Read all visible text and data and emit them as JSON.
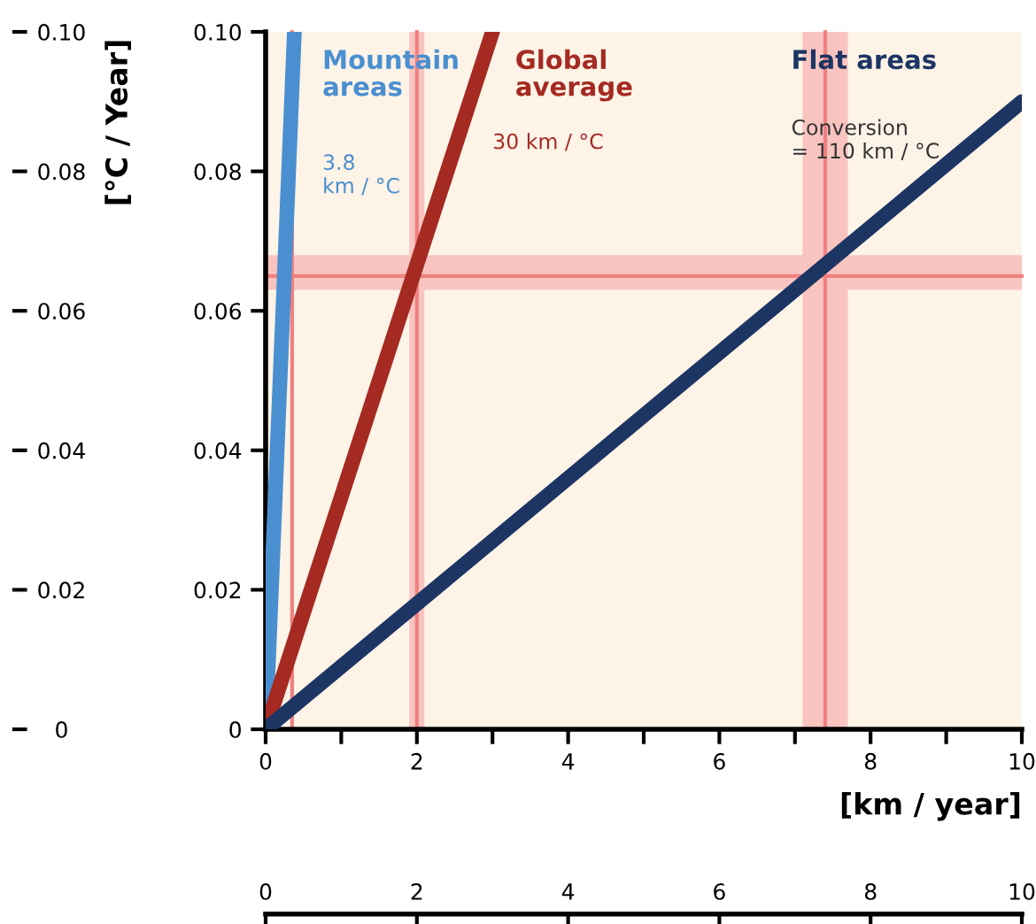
{
  "chart_data": {
    "type": "line",
    "ylabel": "[°C / Year]",
    "xlabel": "[km / year]",
    "series": [
      {
        "name": "Mountain areas",
        "color": "#4a8fd0",
        "x": [
          0,
          0.38
        ],
        "values": [
          0,
          0.1
        ]
      },
      {
        "name": "Global average",
        "color": "#a52a22",
        "x": [
          0,
          3
        ],
        "values": [
          0,
          0.1
        ]
      },
      {
        "name": "Flat areas",
        "color": "#1c3563",
        "x": [
          0,
          10
        ],
        "values": [
          0,
          0.09
        ]
      }
    ],
    "annotations": [
      "3.8\nkm / °C",
      "30 km / °C",
      "Conversion\n= 110 km / °C"
    ],
    "xlim": [
      0,
      10
    ],
    "xticks": [
      0,
      {
        "value": 1,
        "label": null
      },
      2,
      {
        "value": 3,
        "label": null
      },
      4,
      {
        "value": 5,
        "label": null
      },
      6,
      {
        "value": 7,
        "label": null
      },
      8,
      {
        "value": 9,
        "label": null
      },
      10
    ],
    "ylim": [
      0,
      0.1
    ],
    "yticks": [
      {
        "value": 0,
        "label": "0"
      },
      {
        "value": 0.02,
        "label": "0.02"
      },
      {
        "value": 0.04,
        "label": "0.04"
      },
      {
        "value": 0.06,
        "label": "0.06"
      },
      {
        "value": 0.08,
        "label": "0.08"
      },
      {
        "value": 0.1,
        "label": "0.10"
      }
    ],
    "y2lim": [
      0,
      0.1
    ],
    "y2ticks": [
      {
        "value": 0,
        "label": "0"
      },
      {
        "value": 0.02,
        "label": "0.02"
      },
      {
        "value": 0.04,
        "label": "0.04"
      },
      {
        "value": 0.06,
        "label": "0.06"
      },
      {
        "value": 0.08,
        "label": "0.08"
      },
      {
        "value": 0.1,
        "label": "0.10"
      }
    ],
    "x2lim": [
      0,
      10
    ],
    "x2ticks": [
      0,
      2,
      4,
      6,
      8,
      10
    ],
    "ref_lines": [
      {
        "axis": "y",
        "value": 0.065,
        "color": "#f08080"
      },
      {
        "axis": "x",
        "value": 0.35,
        "color": "#f08080"
      },
      {
        "axis": "x",
        "value": 2.0,
        "color": "#f08080"
      },
      {
        "axis": "x",
        "value": 7.4,
        "color": "#f08080"
      }
    ],
    "bands": [
      {
        "axis": "y",
        "from": 0.063,
        "to": 0.068,
        "color": "#f9c4c0"
      },
      {
        "axis": "x",
        "from": 1.9,
        "to": 2.1,
        "color": "#f9c4c0"
      },
      {
        "axis": "x",
        "from": 7.1,
        "to": 7.7,
        "color": "#f9c4c0"
      }
    ],
    "line_style": "solid",
    "marker": "none",
    "grid": false,
    "legend": false
  }
}
